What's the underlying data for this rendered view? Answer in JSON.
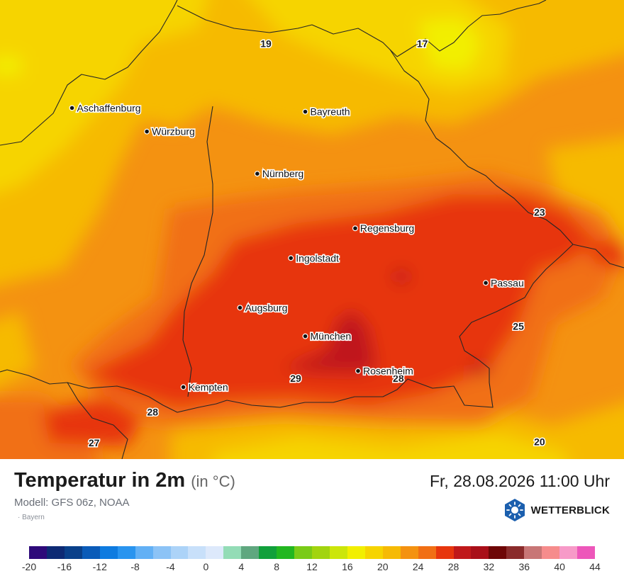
{
  "map": {
    "cities": [
      {
        "name": "Aschaffenburg",
        "lon": 9.15,
        "lat": 49.98
      },
      {
        "name": "Würzburg",
        "lon": 9.93,
        "lat": 49.79
      },
      {
        "name": "Bayreuth",
        "lon": 11.58,
        "lat": 49.95
      },
      {
        "name": "Nürnberg",
        "lon": 11.08,
        "lat": 49.45
      },
      {
        "name": "Regensburg",
        "lon": 12.1,
        "lat": 49.01
      },
      {
        "name": "Ingolstadt",
        "lon": 11.43,
        "lat": 48.77
      },
      {
        "name": "Passau",
        "lon": 13.46,
        "lat": 48.57
      },
      {
        "name": "Augsburg",
        "lon": 10.9,
        "lat": 48.37
      },
      {
        "name": "München",
        "lon": 11.58,
        "lat": 48.14
      },
      {
        "name": "Rosenheim",
        "lon": 12.13,
        "lat": 47.86
      },
      {
        "name": "Kempten",
        "lon": 10.31,
        "lat": 47.73
      }
    ],
    "temperature_labels": [
      {
        "value": "19",
        "lon": 11.17,
        "lat": 50.5
      },
      {
        "value": "17",
        "lon": 12.8,
        "lat": 50.5
      },
      {
        "value": "23",
        "lon": 14.02,
        "lat": 49.14
      },
      {
        "value": "25",
        "lon": 13.8,
        "lat": 48.22
      },
      {
        "value": "29",
        "lon": 11.48,
        "lat": 47.8
      },
      {
        "value": "28",
        "lon": 12.55,
        "lat": 47.8
      },
      {
        "value": "28",
        "lon": 9.99,
        "lat": 47.53
      },
      {
        "value": "27",
        "lon": 9.38,
        "lat": 47.28
      },
      {
        "value": "20",
        "lon": 14.02,
        "lat": 47.29
      }
    ]
  },
  "footer": {
    "title": "Temperatur in 2m",
    "unit": "(in °C)",
    "datetime": "Fr, 28.08.2026 11:00 Uhr",
    "model": "Modell: GFS 06z, NOAA",
    "region": "· Bayern",
    "brand": "WETTERBLICK",
    "brand_icon": "sun-icon"
  },
  "legend": {
    "colors": [
      "#2e0a7a",
      "#0d2a74",
      "#09408a",
      "#0a5bb8",
      "#0e7be0",
      "#2994ef",
      "#62b0f5",
      "#8cc3f6",
      "#acd3f8",
      "#c8e0fa",
      "#dde9fb",
      "#93dcb6",
      "#5fa77f",
      "#11a03b",
      "#22b720",
      "#7acb17",
      "#a2d40f",
      "#cce60a",
      "#f2ef00",
      "#f6d400",
      "#f6ba04",
      "#f49211",
      "#f16f14",
      "#e7360d",
      "#c0181a",
      "#a90f18",
      "#6e0606",
      "#8a2b2b",
      "#c87676",
      "#f68c8c",
      "#f79ac8",
      "#ed57ba"
    ],
    "ticks": [
      "-20",
      "-16",
      "-12",
      "-8",
      "-4",
      "0",
      "4",
      "8",
      "12",
      "16",
      "20",
      "24",
      "28",
      "32",
      "36",
      "40",
      "44"
    ]
  }
}
